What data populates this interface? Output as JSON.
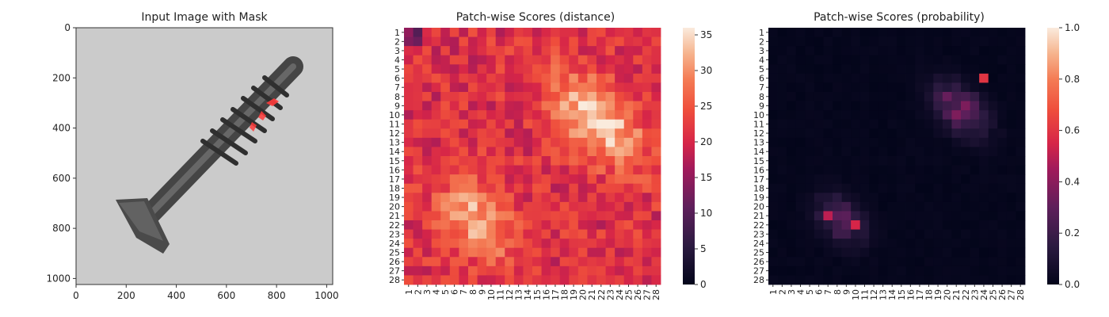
{
  "chart_data": [
    {
      "type": "image",
      "title": "Input Image with Mask",
      "content": "grayscale photo of a screw with a red anomaly mask near the upper threads",
      "xlim": [
        0,
        1024
      ],
      "ylim": [
        1024,
        0
      ],
      "xticks": [
        0,
        200,
        400,
        600,
        800,
        1000
      ],
      "yticks": [
        0,
        200,
        400,
        600,
        800,
        1000
      ],
      "mask_color": "#ff3b3b"
    },
    {
      "type": "heatmap",
      "title": "Patch-wise Scores (distance)",
      "grid": [
        28,
        28
      ],
      "xticklabels": [
        "1",
        "2",
        "3",
        "4",
        "5",
        "6",
        "7",
        "8",
        "9",
        "10",
        "11",
        "12",
        "13",
        "14",
        "15",
        "16",
        "17",
        "18",
        "19",
        "20",
        "21",
        "22",
        "23",
        "24",
        "25",
        "26",
        "27",
        "28"
      ],
      "yticklabels": [
        "1",
        "2",
        "3",
        "4",
        "5",
        "6",
        "7",
        "8",
        "9",
        "10",
        "11",
        "12",
        "13",
        "14",
        "15",
        "16",
        "17",
        "18",
        "19",
        "20",
        "21",
        "22",
        "23",
        "24",
        "25",
        "26",
        "27",
        "28"
      ],
      "colormap": "rocket",
      "colorbar": {
        "vmin": 0,
        "vmax": 36,
        "ticks": [
          0,
          5,
          10,
          15,
          20,
          25,
          30,
          35
        ]
      },
      "background_level": 21,
      "hotspots": [
        {
          "row": 10.5,
          "col": 21.5,
          "peak": 35,
          "extent": 9
        },
        {
          "row": 21.5,
          "col": 8.5,
          "peak": 32,
          "extent": 6
        }
      ]
    },
    {
      "type": "heatmap",
      "title": "Patch-wise Scores (probability)",
      "grid": [
        28,
        28
      ],
      "xticklabels": [
        "1",
        "2",
        "3",
        "4",
        "5",
        "6",
        "7",
        "8",
        "9",
        "10",
        "11",
        "12",
        "13",
        "14",
        "15",
        "16",
        "17",
        "18",
        "19",
        "20",
        "21",
        "22",
        "23",
        "24",
        "25",
        "26",
        "27",
        "28"
      ],
      "yticklabels": [
        "1",
        "2",
        "3",
        "4",
        "5",
        "6",
        "7",
        "8",
        "9",
        "10",
        "11",
        "12",
        "13",
        "14",
        "15",
        "16",
        "17",
        "18",
        "19",
        "20",
        "21",
        "22",
        "23",
        "24",
        "25",
        "26",
        "27",
        "28"
      ],
      "colormap": "rocket",
      "colorbar": {
        "vmin": 0.0,
        "vmax": 1.0,
        "ticks": [
          "0.0",
          "0.2",
          "0.4",
          "0.6",
          "0.8",
          "1.0"
        ]
      },
      "background_level": 0.0,
      "hotspots": [
        {
          "row": 9.5,
          "col": 21.5,
          "peak": 0.45,
          "extent": 5
        },
        {
          "row": 21.5,
          "col": 8.5,
          "peak": 0.35,
          "extent": 4
        }
      ],
      "bright_cells": [
        {
          "row": 6,
          "col": 24,
          "value": 0.6
        },
        {
          "row": 22,
          "col": 10,
          "value": 0.55
        },
        {
          "row": 21,
          "col": 7,
          "value": 0.5
        }
      ]
    }
  ]
}
